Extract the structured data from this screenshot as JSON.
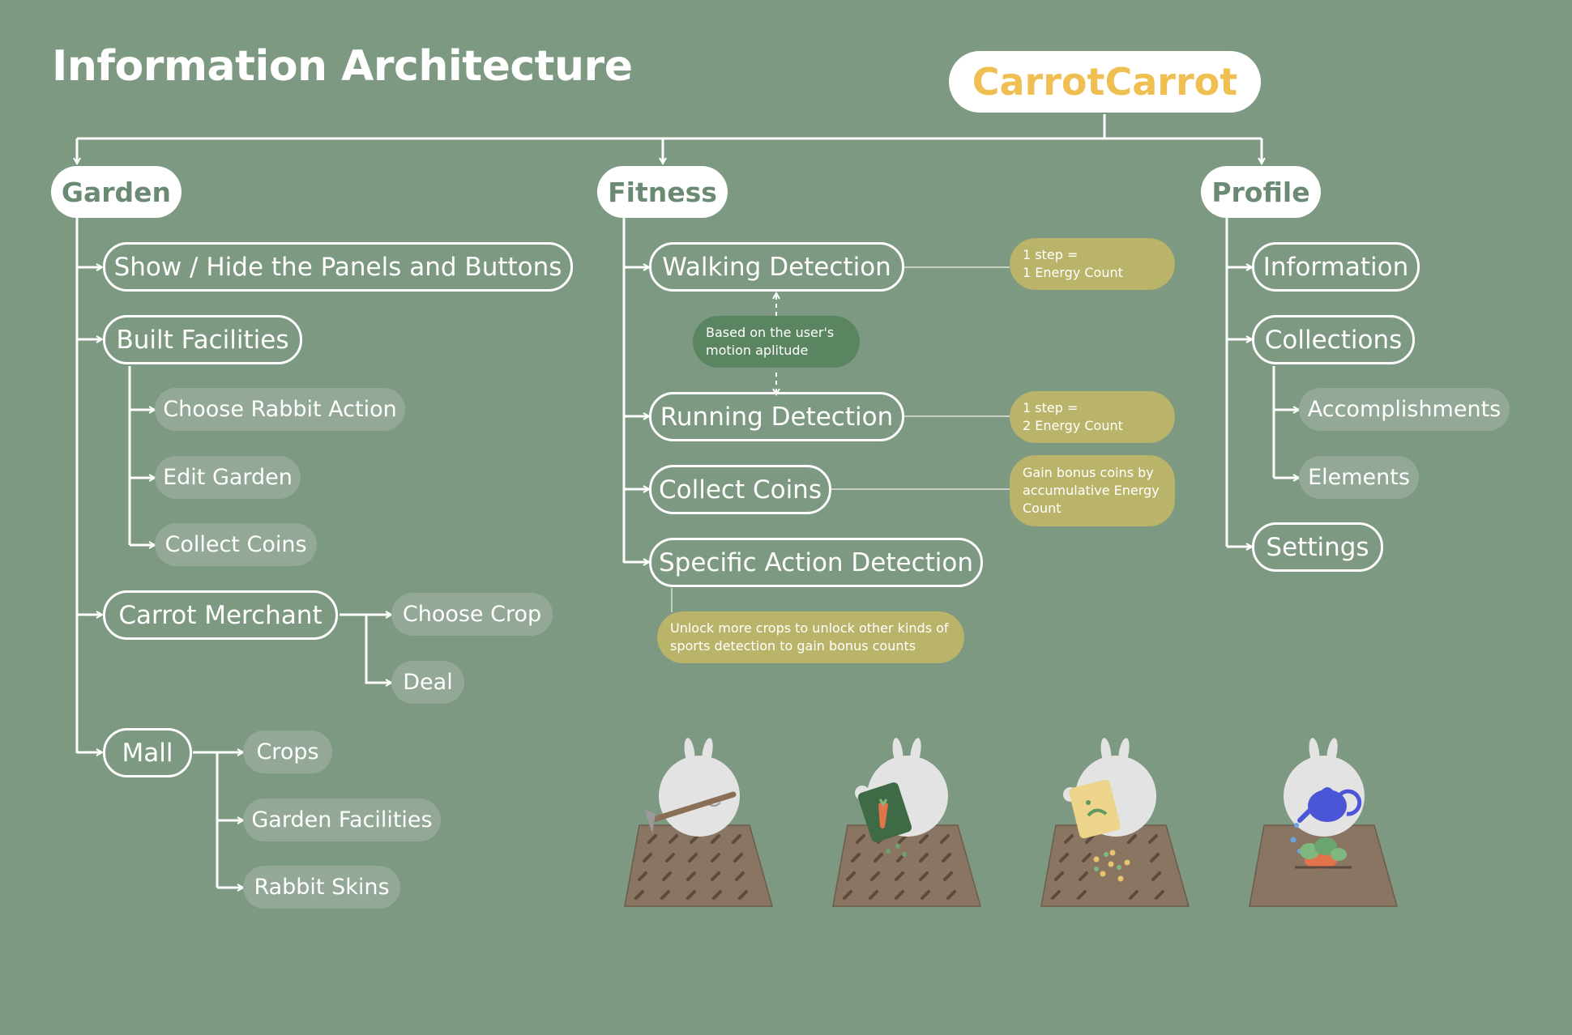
{
  "title": "Information Architecture",
  "root": {
    "label": "CarrotCarrot"
  },
  "colors": {
    "background": "#7d9982",
    "root_text": "#efbf52",
    "category_text": "#6b8a73",
    "leaf_fill": "#93a897",
    "note_olive": "#b9b469",
    "note_green": "#5b8560"
  },
  "garden": {
    "label": "Garden",
    "items": {
      "show_hide": "Show / Hide the Panels and Buttons",
      "built": "Built Facilities",
      "built_children": [
        "Choose Rabbit Action",
        "Edit Garden",
        "Collect Coins"
      ],
      "merchant": "Carrot Merchant",
      "merchant_children": [
        "Choose Crop",
        "Deal"
      ],
      "mall": "Mall",
      "mall_children": [
        "Crops",
        "Garden Facilities",
        "Rabbit Skins"
      ]
    }
  },
  "fitness": {
    "label": "Fitness",
    "items": [
      "Walking Detection",
      "Running Detection",
      "Collect Coins",
      "Specific Action Detection"
    ],
    "notes": {
      "walking": [
        "1 step =",
        "1 Energy Count"
      ],
      "motion": [
        "Based on the user's",
        "motion aplitude"
      ],
      "running": [
        "1 step =",
        "2 Energy Count"
      ],
      "coins": [
        "Gain bonus coins by",
        "accumulative Energy",
        "Count"
      ],
      "specific": [
        "Unlock more crops to unlock other kinds of",
        "sports detection to gain bonus counts"
      ]
    }
  },
  "profile": {
    "label": "Profile",
    "items": [
      "Information",
      "Collections",
      "Settings"
    ],
    "collections_children": [
      "Accomplishments",
      "Elements"
    ]
  },
  "illustrations": [
    "rabbit-hoeing-icon",
    "rabbit-carrot-seed-bag-icon",
    "rabbit-sowing-seeds-icon",
    "rabbit-watering-can-icon"
  ]
}
